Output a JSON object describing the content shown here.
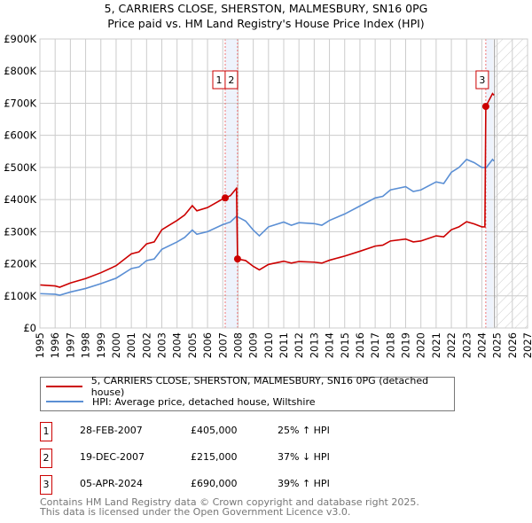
{
  "chart_data": {
    "type": "line",
    "title": "5, CARRIERS CLOSE, SHERSTON, MALMESBURY, SN16 0PG",
    "subtitle": "Price paid vs. HM Land Registry's House Price Index (HPI)",
    "xlim": [
      1995,
      2027
    ],
    "ylim": [
      0,
      900000
    ],
    "yticks": [
      0,
      100000,
      200000,
      300000,
      400000,
      500000,
      600000,
      700000,
      800000,
      900000
    ],
    "ytick_labels": [
      "£0",
      "£100K",
      "£200K",
      "£300K",
      "£400K",
      "£500K",
      "£600K",
      "£700K",
      "£800K",
      "£900K"
    ],
    "xticks": [
      1995,
      1996,
      1997,
      1998,
      1999,
      2000,
      2001,
      2002,
      2003,
      2004,
      2005,
      2006,
      2007,
      2008,
      2009,
      2010,
      2011,
      2012,
      2013,
      2014,
      2015,
      2016,
      2017,
      2018,
      2019,
      2020,
      2021,
      2022,
      2023,
      2024,
      2025,
      2026,
      2027
    ],
    "grid": true,
    "series": [
      {
        "name": "5, CARRIERS CLOSE, SHERSTON, MALMESBURY, SN16 0PG (detached house)",
        "color": "#cc0000",
        "x": [
          1995,
          1996,
          1996.3,
          1997,
          1998,
          1999,
          2000,
          2001,
          2001.5,
          2002,
          2002.5,
          2003,
          2004,
          2004.5,
          2005,
          2005.3,
          2006,
          2007,
          2007.16,
          2007.5,
          2007.9,
          2007.97,
          2008.5,
          2009,
          2009.4,
          2010,
          2011,
          2011.5,
          2012,
          2013,
          2013.5,
          2014,
          2015,
          2016,
          2017,
          2017.5,
          2018,
          2019,
          2019.5,
          2020,
          2021,
          2021.5,
          2022,
          2022.5,
          2023,
          2023.5,
          2024,
          2024.2,
          2024.26,
          2024.7,
          2024.8
        ],
        "y": [
          134000,
          131000,
          127000,
          140000,
          154000,
          172000,
          194000,
          231000,
          237000,
          262000,
          268000,
          306000,
          335000,
          352000,
          381000,
          365000,
          375000,
          402000,
          405000,
          412000,
          435000,
          215000,
          210000,
          192000,
          181000,
          198000,
          208000,
          202000,
          207000,
          205000,
          202000,
          211000,
          224000,
          239000,
          255000,
          258000,
          271000,
          277000,
          268000,
          271000,
          287000,
          284000,
          306000,
          315000,
          331000,
          324000,
          315000,
          315000,
          690000,
          730000,
          725000
        ]
      },
      {
        "name": "HPI: Average price, detached house, Wiltshire",
        "color": "#5b8fd4",
        "x": [
          1995,
          1996,
          1996.3,
          1997,
          1998,
          1999,
          2000,
          2001,
          2001.5,
          2002,
          2002.5,
          2003,
          2004,
          2004.5,
          2005,
          2005.3,
          2006,
          2007,
          2007.5,
          2007.9,
          2008.5,
          2009,
          2009.4,
          2010,
          2011,
          2011.5,
          2012,
          2013,
          2013.5,
          2014,
          2015,
          2016,
          2017,
          2017.5,
          2018,
          2019,
          2019.5,
          2020,
          2021,
          2021.5,
          2022,
          2022.5,
          2023,
          2023.5,
          2024,
          2024.3,
          2024.7,
          2024.8
        ],
        "y": [
          107000,
          105000,
          102000,
          112000,
          123000,
          138000,
          155000,
          185000,
          190000,
          210000,
          215000,
          245000,
          268000,
          282000,
          305000,
          292000,
          300000,
          322000,
          330000,
          348000,
          333000,
          305000,
          287000,
          315000,
          330000,
          320000,
          328000,
          325000,
          320000,
          335000,
          355000,
          380000,
          405000,
          410000,
          430000,
          440000,
          425000,
          430000,
          455000,
          450000,
          485000,
          500000,
          525000,
          515000,
          500000,
          500000,
          525000,
          520000
        ]
      }
    ],
    "sales": [
      {
        "id": "1",
        "x": 2007.16,
        "price": 405000,
        "date": "28-FEB-2007",
        "price_label": "£405,000",
        "hpi": "25% ↑ HPI"
      },
      {
        "id": "2",
        "x": 2007.97,
        "price": 215000,
        "date": "19-DEC-2007",
        "price_label": "£215,000",
        "hpi": "37% ↓ HPI"
      },
      {
        "id": "3",
        "x": 2024.26,
        "price": 690000,
        "date": "05-APR-2024",
        "price_label": "£690,000",
        "hpi": "39% ↑ HPI"
      }
    ],
    "highlight_bands": [
      [
        2007.16,
        2007.97
      ],
      [
        2024.26,
        2024.75
      ]
    ],
    "forecast_start": 2024.83
  },
  "footer": [
    "Contains HM Land Registry data © Crown copyright and database right 2025.",
    "This data is licensed under the Open Government Licence v3.0."
  ]
}
